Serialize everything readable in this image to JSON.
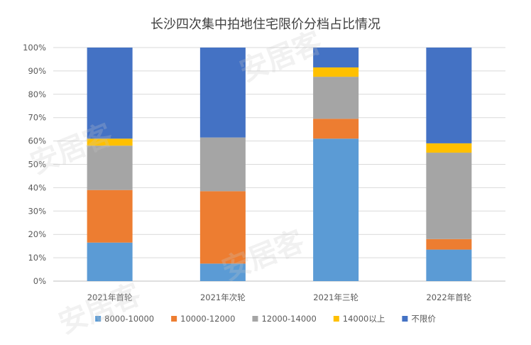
{
  "chart_data": {
    "type": "bar",
    "stacked": true,
    "title": "长沙四次集中拍地住宅限价分档占比情况",
    "categories": [
      "2021年首轮",
      "2021年次轮",
      "2021年三轮",
      "2022年首轮"
    ],
    "series": [
      {
        "name": "8000-10000",
        "color": "#5b9bd5",
        "values": [
          16.5,
          7.5,
          61,
          13.5
        ]
      },
      {
        "name": "10000-12000",
        "color": "#ed7d31",
        "values": [
          22.5,
          31,
          8.5,
          4.5
        ]
      },
      {
        "name": "12000-14000",
        "color": "#a5a5a5",
        "values": [
          19,
          23,
          18,
          37
        ]
      },
      {
        "name": "14000以上",
        "color": "#ffc000",
        "values": [
          3,
          0,
          4,
          4
        ]
      },
      {
        "name": "不限价",
        "color": "#4472c4",
        "values": [
          39,
          38.5,
          8.5,
          41
        ]
      }
    ],
    "ylim": [
      0,
      100
    ],
    "yticks": [
      "0%",
      "10%",
      "20%",
      "30%",
      "40%",
      "50%",
      "60%",
      "70%",
      "80%",
      "90%",
      "100%"
    ],
    "xlabel": "",
    "ylabel": "",
    "grid": true,
    "legend_position": "bottom"
  },
  "watermark": "安居客"
}
